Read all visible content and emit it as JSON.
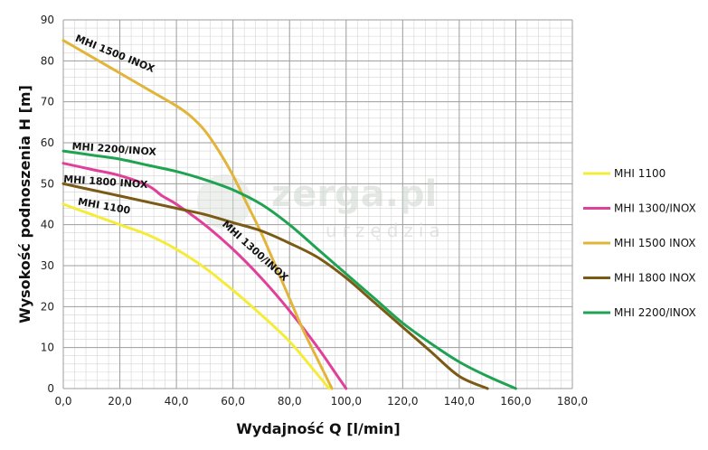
{
  "watermark": {
    "brand": "zerga.pl",
    "sub": "urzędzia"
  },
  "chart_data": {
    "type": "line",
    "xlabel": "Wydajność Q [l/min]",
    "ylabel": "Wysokość podnoszenia H [m]",
    "xlim": [
      0,
      180
    ],
    "ylim": [
      0,
      90
    ],
    "xticks": [
      "0,0",
      "20,0",
      "40,0",
      "60,0",
      "80,0",
      "100,0",
      "120,0",
      "140,0",
      "160,0",
      "180,0"
    ],
    "yticks": [
      "0",
      "10",
      "20",
      "30",
      "40",
      "50",
      "60",
      "70",
      "80",
      "90"
    ],
    "grid": true,
    "legend_position": "right",
    "series": [
      {
        "name": "MHI 1100",
        "label": "MHI 1100",
        "color": "#f5ec3a",
        "points": [
          [
            0,
            45
          ],
          [
            10,
            42.5
          ],
          [
            20,
            40
          ],
          [
            30,
            37.5
          ],
          [
            40,
            34
          ],
          [
            50,
            29.5
          ],
          [
            60,
            24
          ],
          [
            70,
            18
          ],
          [
            80,
            11.5
          ],
          [
            88,
            5
          ],
          [
            94,
            0
          ]
        ]
      },
      {
        "name": "MHI 1300/INOX",
        "label": "MHI 1300/INOX",
        "color": "#e0409a",
        "points": [
          [
            0,
            55
          ],
          [
            10,
            53.5
          ],
          [
            20,
            52
          ],
          [
            30,
            49.5
          ],
          [
            35,
            47
          ],
          [
            40,
            45
          ],
          [
            50,
            40
          ],
          [
            60,
            34
          ],
          [
            70,
            27
          ],
          [
            80,
            19
          ],
          [
            90,
            10
          ],
          [
            96,
            4
          ],
          [
            100,
            0
          ]
        ]
      },
      {
        "name": "MHI 1500 INOX",
        "label": "MHI 1500 INOX",
        "color": "#e2b53a",
        "points": [
          [
            0,
            85
          ],
          [
            10,
            81
          ],
          [
            20,
            77
          ],
          [
            30,
            73
          ],
          [
            40,
            69
          ],
          [
            45,
            66.5
          ],
          [
            50,
            63
          ],
          [
            55,
            58
          ],
          [
            60,
            52
          ],
          [
            65,
            45
          ],
          [
            70,
            38
          ],
          [
            75,
            30
          ],
          [
            80,
            22
          ],
          [
            85,
            14
          ],
          [
            90,
            7
          ],
          [
            95,
            0
          ]
        ]
      },
      {
        "name": "MHI 1800 INOX",
        "label": "MHI 1800 INOX",
        "color": "#7a5a14",
        "points": [
          [
            0,
            50
          ],
          [
            10,
            48.5
          ],
          [
            20,
            47
          ],
          [
            30,
            45.5
          ],
          [
            40,
            44
          ],
          [
            50,
            42.5
          ],
          [
            60,
            40.5
          ],
          [
            70,
            38.5
          ],
          [
            80,
            35.5
          ],
          [
            90,
            32
          ],
          [
            100,
            27
          ],
          [
            110,
            21
          ],
          [
            120,
            15
          ],
          [
            130,
            9
          ],
          [
            140,
            3
          ],
          [
            150,
            0
          ]
        ]
      },
      {
        "name": "MHI 2200/INOX",
        "label": "MHI 2200/INOX",
        "color": "#1fa352",
        "points": [
          [
            0,
            58
          ],
          [
            10,
            57
          ],
          [
            20,
            56
          ],
          [
            30,
            54.5
          ],
          [
            40,
            53
          ],
          [
            50,
            51
          ],
          [
            60,
            48.5
          ],
          [
            70,
            45
          ],
          [
            80,
            40
          ],
          [
            90,
            34
          ],
          [
            100,
            28
          ],
          [
            110,
            22
          ],
          [
            120,
            16
          ],
          [
            130,
            11
          ],
          [
            140,
            6.5
          ],
          [
            150,
            3
          ],
          [
            160,
            0
          ]
        ]
      }
    ],
    "curve_labels": [
      {
        "text": "MHI 1500 INOX",
        "series": "MHI 1500 INOX",
        "at": [
          4,
          84
        ],
        "angle": 22
      },
      {
        "text": "MHI 2200/INOX",
        "series": "MHI 2200/INOX",
        "at": [
          3,
          57.5
        ],
        "angle": 4
      },
      {
        "text": "MHI 1800 INOX",
        "series": "MHI 1800 INOX",
        "at": [
          0,
          49.5
        ],
        "angle": 4
      },
      {
        "text": "MHI 1100",
        "series": "MHI 1100",
        "at": [
          5,
          44
        ],
        "angle": 10
      },
      {
        "text": "MHI 1300/INOX",
        "series": "MHI 1300/INOX",
        "at": [
          56,
          39
        ],
        "angle": 42
      }
    ]
  }
}
